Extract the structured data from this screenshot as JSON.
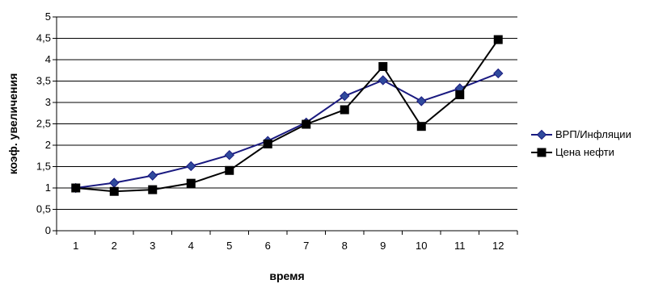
{
  "chart_data": {
    "type": "line",
    "xlabel": "время",
    "ylabel": "коэф. увеличения",
    "x": [
      "1",
      "2",
      "3",
      "4",
      "5",
      "6",
      "7",
      "8",
      "9",
      "10",
      "11",
      "12"
    ],
    "ylim": [
      0,
      5
    ],
    "yticks": [
      "0",
      "0,5",
      "1",
      "1,5",
      "2",
      "2,5",
      "3",
      "3,5",
      "4",
      "4,5",
      "5"
    ],
    "grid": "horizontal",
    "legend": "right",
    "series": [
      {
        "name": "ВРП/Инфляции",
        "values": [
          1.0,
          1.12,
          1.29,
          1.51,
          1.77,
          2.1,
          2.53,
          3.15,
          3.52,
          3.03,
          3.33,
          3.68
        ],
        "line_color": "#1a1a80",
        "marker": "diamond",
        "marker_color": "#2f4a9c"
      },
      {
        "name": "Цена нефти",
        "values": [
          1.0,
          0.92,
          0.96,
          1.11,
          1.41,
          2.03,
          2.49,
          2.83,
          3.84,
          2.44,
          3.18,
          4.47
        ],
        "line_color": "#000000",
        "marker": "square",
        "marker_color": "#000000"
      }
    ]
  }
}
